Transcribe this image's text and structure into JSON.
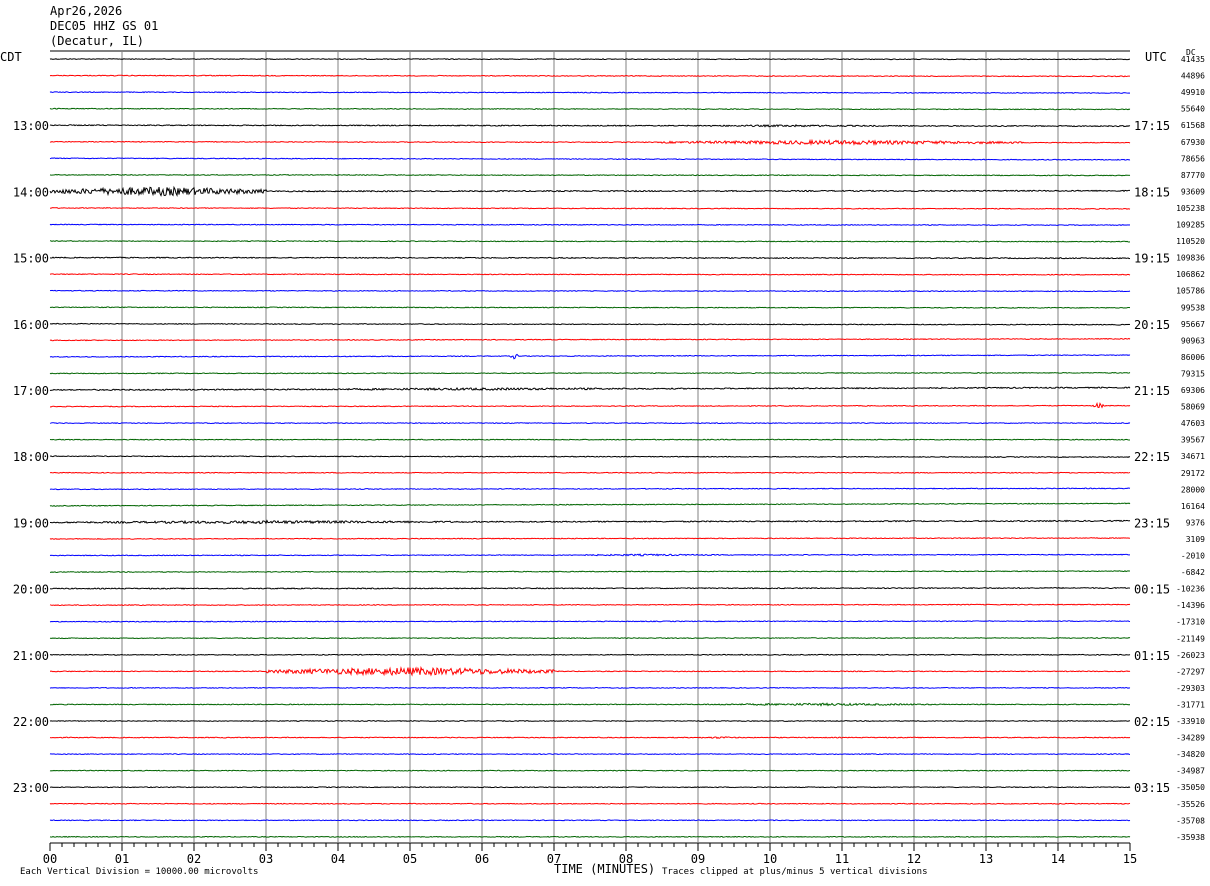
{
  "header": {
    "date": "Apr26,2026",
    "station": "DEC05 HHZ GS 01",
    "location": "(Decatur, IL)"
  },
  "left_tz": "CDT",
  "right_tz": "UTC",
  "dc_label": "DC",
  "footer": {
    "scale": "Each Vertical Division = 10000.00 microvolts",
    "xlabel": "TIME (MINUTES)",
    "clip": "Traces clipped at plus/minus 5 vertical divisions"
  },
  "colors": {
    "black": "#000000",
    "red": "#ff0000",
    "blue": "#0000ff",
    "green": "#006400",
    "grid": "#808080"
  },
  "chart_data": {
    "type": "line",
    "title": "DEC05 HHZ GS 01 (Decatur, IL) Apr26,2026",
    "xlabel": "TIME (MINUTES)",
    "x_ticks": [
      "00",
      "01",
      "02",
      "03",
      "04",
      "05",
      "06",
      "07",
      "08",
      "09",
      "10",
      "11",
      "12",
      "13",
      "14",
      "15"
    ],
    "xlim": [
      0,
      15
    ],
    "rows_per_hour": 4,
    "row_colors": [
      "black",
      "red",
      "blue",
      "green"
    ],
    "left_time_labels": [
      "13:00",
      "14:00",
      "15:00",
      "16:00",
      "17:00",
      "18:00",
      "19:00",
      "20:00",
      "21:00",
      "22:00",
      "23:00"
    ],
    "right_time_labels": [
      "17:15",
      "18:15",
      "19:15",
      "20:15",
      "21:15",
      "22:15",
      "23:15",
      "00:15",
      "01:15",
      "02:15",
      "03:15"
    ],
    "dc_offsets": [
      "41435",
      "44896",
      "49910",
      "55640",
      "61568",
      "67930",
      "78656",
      "87770",
      "93609",
      "105238",
      "109285",
      "110520",
      "109836",
      "106862",
      "105786",
      "99538",
      "95667",
      "90963",
      "86006",
      "79315",
      "69306",
      "58069",
      "47603",
      "39567",
      "34671",
      "29172",
      "28000",
      "16164",
      "9376",
      "3109",
      "-2010",
      "-6842",
      "-10236",
      "-14396",
      "-17310",
      "-21149",
      "-26023",
      "-27297",
      "-29303",
      "-31771",
      "-33910",
      "-34289",
      "-34820",
      "-34987",
      "-35050",
      "-35526",
      "-35708",
      "-35938"
    ],
    "drift": [
      0.1,
      0.25,
      0.3,
      0.25,
      0.3,
      0.3,
      0.5,
      0.2,
      -0.2,
      0.3,
      0.2,
      0.2,
      0.2,
      0.2,
      0.2,
      0.2,
      0.3,
      -0.5,
      -0.6,
      -0.2,
      -0.8,
      -0.3,
      0,
      0,
      0.3,
      0,
      -0.3,
      -0.8,
      -0.5,
      -0.3,
      -0.3,
      -0.3,
      -0.2,
      -0.2,
      -0.2,
      -0.1,
      0,
      0,
      0,
      0,
      0,
      0,
      0,
      0,
      0,
      0,
      0,
      0
    ],
    "noise": [
      0.4,
      0.4,
      0.4,
      0.4,
      0.5,
      0.4,
      0.4,
      0.4,
      0.6,
      0.4,
      0.4,
      0.4,
      0.5,
      0.4,
      0.4,
      0.4,
      0.4,
      0.4,
      0.4,
      0.4,
      0.6,
      0.4,
      0.4,
      0.4,
      0.4,
      0.4,
      0.4,
      0.4,
      0.6,
      0.4,
      0.4,
      0.4,
      0.5,
      0.4,
      0.4,
      0.4,
      0.4,
      0.4,
      0.4,
      0.4,
      0.4,
      0.4,
      0.4,
      0.4,
      0.4,
      0.4,
      0.4,
      0.4
    ],
    "events": [
      {
        "row": 4,
        "start_min": 8.5,
        "end_min": 12.0,
        "amp": 1.0
      },
      {
        "row": 5,
        "start_min": 8.5,
        "end_min": 13.5,
        "amp": 2.2
      },
      {
        "row": 8,
        "start_min": 0.0,
        "end_min": 3.0,
        "amp": 4.5
      },
      {
        "row": 18,
        "start_min": 6.4,
        "end_min": 6.5,
        "amp": 3.0
      },
      {
        "row": 20,
        "start_min": 3.0,
        "end_min": 9.0,
        "amp": 1.2
      },
      {
        "row": 21,
        "start_min": 14.5,
        "end_min": 14.65,
        "amp": 3.0
      },
      {
        "row": 28,
        "start_min": 0.0,
        "end_min": 6.0,
        "amp": 1.5
      },
      {
        "row": 30,
        "start_min": 7.0,
        "end_min": 9.5,
        "amp": 0.9
      },
      {
        "row": 37,
        "start_min": 3.0,
        "end_min": 7.0,
        "amp": 4.0
      },
      {
        "row": 39,
        "start_min": 9.0,
        "end_min": 12.5,
        "amp": 1.2
      },
      {
        "row": 41,
        "start_min": 9.0,
        "end_min": 9.6,
        "amp": 1.0
      }
    ]
  }
}
